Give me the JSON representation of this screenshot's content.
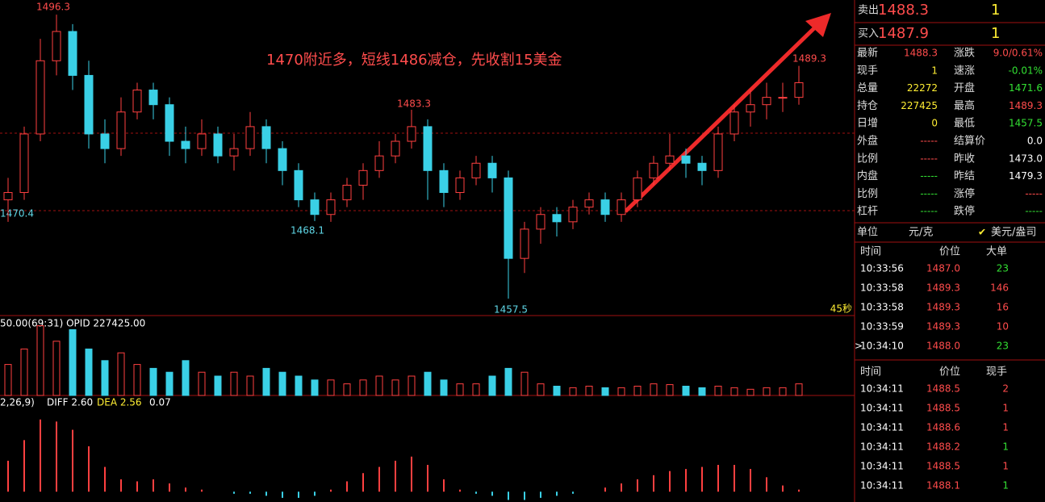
{
  "chart_data": {
    "type": "candlestick",
    "annotation": "1470附近多，短线1486减仓，先收割15美金",
    "price_labels": [
      "1496.3",
      "1470.4",
      "1468.1",
      "1483.3",
      "1457.5",
      "1489.3"
    ],
    "period_label": "45秒",
    "ylim": [
      1455.3,
      1498.3
    ],
    "candles": [
      [
        1471,
        1474,
        1468,
        1472
      ],
      [
        1472,
        1481,
        1471,
        1480
      ],
      [
        1480,
        1493,
        1479,
        1490
      ],
      [
        1490,
        1496.3,
        1488,
        1494
      ],
      [
        1494,
        1495,
        1486,
        1488
      ],
      [
        1488,
        1490,
        1478,
        1480
      ],
      [
        1480,
        1482,
        1476,
        1478
      ],
      [
        1478,
        1485,
        1477,
        1483
      ],
      [
        1483,
        1487,
        1482,
        1486
      ],
      [
        1486,
        1487,
        1482,
        1484
      ],
      [
        1484,
        1485,
        1477,
        1479
      ],
      [
        1479,
        1481,
        1476,
        1478
      ],
      [
        1478,
        1482,
        1477,
        1480
      ],
      [
        1480,
        1481,
        1476,
        1477
      ],
      [
        1477,
        1480,
        1475,
        1478
      ],
      [
        1478,
        1483,
        1477,
        1481
      ],
      [
        1481,
        1482,
        1476,
        1478
      ],
      [
        1478,
        1479,
        1473,
        1475
      ],
      [
        1475,
        1476,
        1470,
        1471
      ],
      [
        1471,
        1472,
        1468.1,
        1469
      ],
      [
        1469,
        1472,
        1468,
        1471
      ],
      [
        1471,
        1474,
        1470,
        1473
      ],
      [
        1473,
        1476,
        1471,
        1475
      ],
      [
        1475,
        1479,
        1474,
        1477
      ],
      [
        1477,
        1480,
        1476,
        1479
      ],
      [
        1479,
        1483.3,
        1478,
        1481
      ],
      [
        1481,
        1482,
        1471,
        1475
      ],
      [
        1475,
        1476,
        1470,
        1472
      ],
      [
        1472,
        1475,
        1471,
        1474
      ],
      [
        1474,
        1477,
        1473,
        1476
      ],
      [
        1476,
        1477,
        1472,
        1474
      ],
      [
        1474,
        1475,
        1457.5,
        1463
      ],
      [
        1463,
        1468,
        1461,
        1467
      ],
      [
        1467,
        1470,
        1465,
        1469
      ],
      [
        1469,
        1470,
        1466,
        1468
      ],
      [
        1468,
        1471,
        1467,
        1470
      ],
      [
        1470,
        1472,
        1469,
        1471
      ],
      [
        1471,
        1472,
        1468,
        1469
      ],
      [
        1469,
        1472,
        1468,
        1471
      ],
      [
        1471,
        1475,
        1470,
        1474
      ],
      [
        1474,
        1477,
        1473,
        1476
      ],
      [
        1476,
        1480,
        1475,
        1477
      ],
      [
        1477,
        1478,
        1474,
        1476
      ],
      [
        1476,
        1477,
        1473,
        1475
      ],
      [
        1475,
        1481,
        1474,
        1480
      ],
      [
        1480,
        1484,
        1479,
        1483
      ],
      [
        1483,
        1486,
        1481,
        1484
      ],
      [
        1484,
        1487,
        1482,
        1485
      ],
      [
        1485,
        1487,
        1483,
        1485
      ],
      [
        1485,
        1489.3,
        1484,
        1487
      ]
    ],
    "volume_header": "50.00(69:31)  OPID 227425.00",
    "volume_lim": [
      0,
      100
    ],
    "volume": [
      40,
      60,
      90,
      70,
      85,
      60,
      45,
      55,
      40,
      35,
      30,
      45,
      30,
      25,
      30,
      25,
      35,
      30,
      25,
      20,
      20,
      15,
      20,
      25,
      20,
      25,
      30,
      20,
      15,
      15,
      25,
      35,
      30,
      15,
      12,
      10,
      12,
      10,
      10,
      12,
      15,
      14,
      12,
      10,
      12,
      10,
      8,
      10,
      10,
      15
    ],
    "macd_params": "2,26,9)",
    "macd_diff": "DIFF 2.60",
    "macd_dea": "DEA 2.56",
    "macd_value": "0.07",
    "macd_lim": [
      -0.5,
      4
    ],
    "macd": [
      1.5,
      2.5,
      3.5,
      3.4,
      3.0,
      2.2,
      1.2,
      0.6,
      0.5,
      0.6,
      0.4,
      0.2,
      0.1,
      0.0,
      -0.1,
      -0.1,
      -0.2,
      -0.3,
      -0.3,
      -0.2,
      0.1,
      0.5,
      0.9,
      1.2,
      1.5,
      1.7,
      1.3,
      0.6,
      0.1,
      -0.1,
      -0.2,
      -0.4,
      -0.4,
      -0.3,
      -0.2,
      -0.1,
      0.0,
      0.2,
      0.4,
      0.6,
      0.8,
      1.0,
      1.1,
      1.2,
      1.3,
      1.3,
      1.1,
      0.7,
      0.3,
      0.1
    ]
  },
  "quote": {
    "sell": [
      "卖出",
      "1488.3",
      "1"
    ],
    "buy": [
      "买入",
      "1487.9",
      "1"
    ],
    "grid": [
      [
        "最新",
        "1488.3",
        "涨跌",
        "9.0/0.61%"
      ],
      [
        "现手",
        "1",
        "速涨",
        "-0.01%"
      ],
      [
        "总量",
        "22272",
        "开盘",
        "1471.6"
      ],
      [
        "持仓",
        "227425",
        "最高",
        "1489.3"
      ],
      [
        "日增",
        "0",
        "最低",
        "1457.5"
      ],
      [
        "外盘",
        "-----",
        "结算价",
        "0.0"
      ],
      [
        "比例",
        "-----",
        "昨收",
        "1473.0"
      ],
      [
        "内盘",
        "-----",
        "昨结",
        "1479.3"
      ],
      [
        "比例",
        "-----",
        "涨停",
        "-----"
      ],
      [
        "杠杆",
        "-----",
        "跌停",
        "-----"
      ]
    ],
    "unit": [
      "单位",
      "元/克",
      "美元/盎司"
    ]
  },
  "big_orders": {
    "header": [
      "时间",
      "价位",
      "大单"
    ],
    "rows": [
      [
        "10:33:56",
        "1487.0",
        "23"
      ],
      [
        "10:33:58",
        "1489.3",
        "146"
      ],
      [
        "10:33:58",
        "1489.3",
        "16"
      ],
      [
        "10:33:59",
        "1489.3",
        "10"
      ],
      [
        "10:34:10",
        "1488.0",
        "23"
      ]
    ]
  },
  "ticks": {
    "header": [
      "时间",
      "价位",
      "现手"
    ],
    "rows": [
      [
        "10:34:11",
        "1488.5",
        "2"
      ],
      [
        "10:34:11",
        "1488.5",
        "1"
      ],
      [
        "10:34:11",
        "1488.6",
        "1"
      ],
      [
        "10:34:11",
        "1488.2",
        "1"
      ],
      [
        "10:34:11",
        "1488.5",
        "1"
      ],
      [
        "10:34:11",
        "1488.1",
        "1"
      ]
    ]
  }
}
